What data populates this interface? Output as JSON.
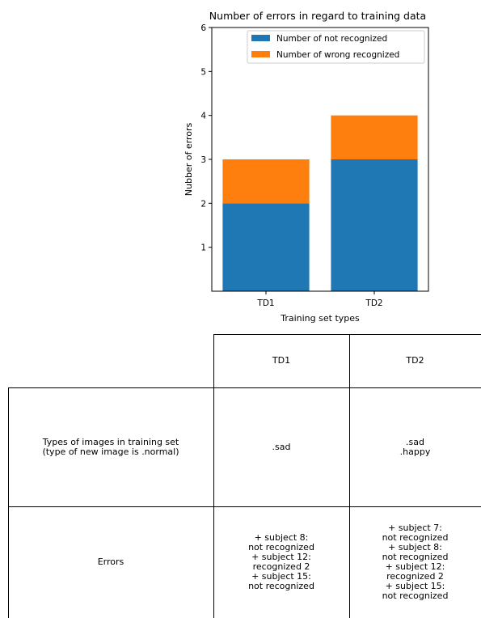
{
  "chart_data": {
    "type": "bar",
    "stacked": true,
    "title": "Number of errors in regard to training data",
    "xlabel": "Training set types",
    "ylabel": "Nubber of errors",
    "categories": [
      "TD1",
      "TD2"
    ],
    "series": [
      {
        "name": "Number of not recognized",
        "values": [
          2,
          3
        ],
        "color": "#1f77b4"
      },
      {
        "name": "Number of wrong recognized",
        "values": [
          1,
          1
        ],
        "color": "#ff7f0e"
      }
    ],
    "ylim": [
      0,
      6
    ],
    "yticks": [
      1,
      2,
      3,
      4,
      5,
      6
    ],
    "legend_position": "top-right",
    "grid": false
  },
  "table": {
    "header": {
      "td1": "TD1",
      "td2": "TD2"
    },
    "row1": {
      "label": "Types of images in training set\n(type of new image is .normal)",
      "td1": ".sad",
      "td2": ".sad\n.happy"
    },
    "row2": {
      "label": "Errors",
      "td1": "+ subject 8:\nnot recognized\n+ subject 12:\nrecognized  2\n+ subject 15:\nnot recognized",
      "td2": "+ subject 7:\nnot recognized\n+ subject 8:\nnot recognized\n+ subject 12:\nrecognized  2\n+ subject 15:\nnot recognized"
    }
  }
}
